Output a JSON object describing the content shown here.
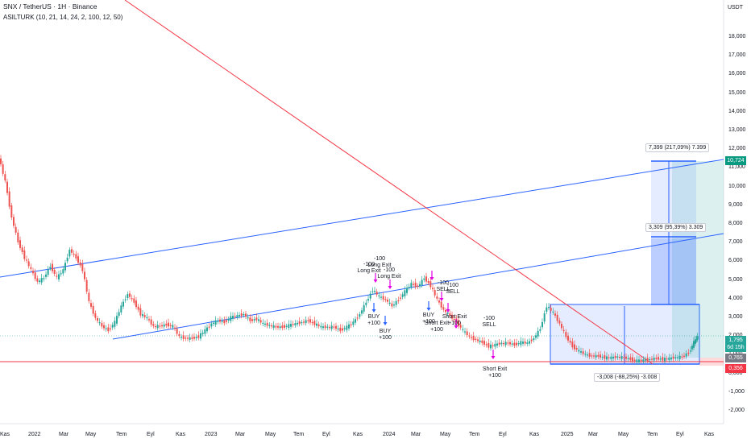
{
  "header": {
    "title": "SNX / TetherUS · 1H · Binance",
    "indicator": "ASILTURK (10, 21, 14, 24, 2, 100, 12, 50)"
  },
  "currency": "USDT",
  "colors": {
    "up": "#26a69a",
    "down": "#ef5350",
    "trend_blue": "#2962ff",
    "trend_red": "#f23645",
    "signal": "#e100e1"
  },
  "price_axis": [
    "18,000",
    "17,000",
    "16,000",
    "15,000",
    "14,000",
    "13,000",
    "12,000",
    "11,000",
    "10,000",
    "9,000",
    "8,000",
    "7,000",
    "6,000",
    "5,000",
    "4,000",
    "3,000",
    "2,000",
    "1,000",
    "0,000",
    "-1,000",
    "-2,000"
  ],
  "time_axis": [
    "Kas",
    "2022",
    "Mar",
    "May",
    "Tem",
    "Eyl",
    "Kas",
    "2023",
    "Mar",
    "May",
    "Tem",
    "Eyl",
    "Kas",
    "2024",
    "Mar",
    "May",
    "Tem",
    "Eyl",
    "Kas",
    "2025",
    "Mar",
    "May",
    "Tem",
    "Eyl",
    "Kas"
  ],
  "price_tags": [
    {
      "label": "10,724",
      "color": "#089981"
    },
    {
      "label": "1,795",
      "color": "#26a69a"
    },
    {
      "label": "6d 15h",
      "color": "#26a69a"
    },
    {
      "label": "0,765",
      "color": "#787b86"
    },
    {
      "label": "0,356",
      "color": "#f23645"
    }
  ],
  "measure_boxes": [
    {
      "text": "7,399 (217,09%) 7.399"
    },
    {
      "text": "3,309 (95,39%) 3.309"
    },
    {
      "text": "-3,008 (-88,25%) -3.008"
    }
  ],
  "annotations": [
    {
      "text": "-100\nLong Exit"
    },
    {
      "text": "-100\nLong Exit"
    },
    {
      "text": "-100\nLong Exit"
    },
    {
      "text": "BUY\n+100"
    },
    {
      "text": "BUY\n+100"
    },
    {
      "text": "BUY\n+100"
    },
    {
      "text": "-100\nSELL"
    },
    {
      "text": "-100\nSELL"
    },
    {
      "text": "Short Exit\n+100"
    },
    {
      "text": "Short Exit\n+100"
    },
    {
      "text": "-100\nSELL"
    },
    {
      "text": "Short Exit\n+100"
    }
  ]
}
